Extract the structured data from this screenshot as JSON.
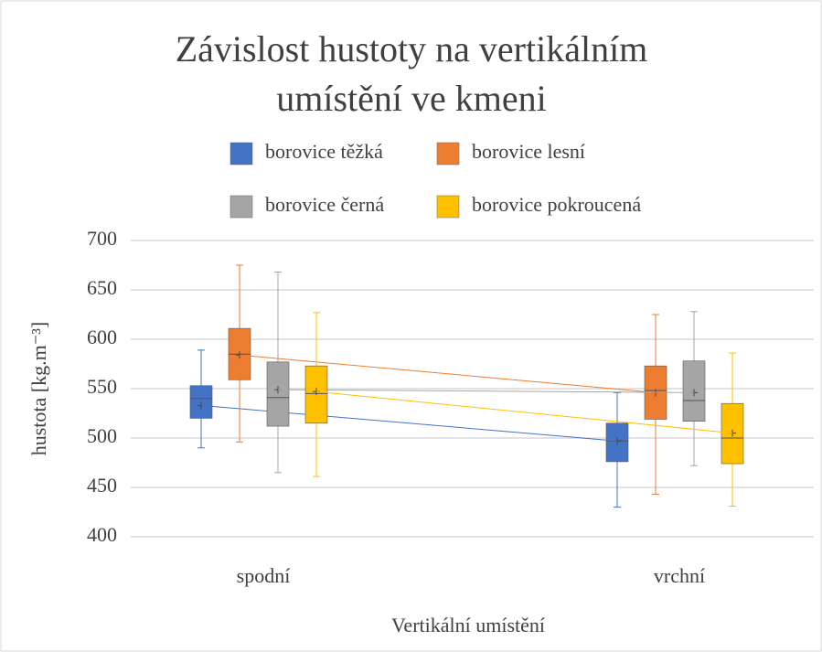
{
  "chart_data": {
    "type": "box",
    "title": [
      "Závislost hustoty na vertikálním",
      "umístění ve kmeni"
    ],
    "xlabel": "Vertikální umístění",
    "ylabel": "hustota [kg.m⁻³]",
    "categories": [
      "spodní",
      "vrchní"
    ],
    "ylim": [
      400,
      700
    ],
    "yticks": [
      400,
      450,
      500,
      550,
      600,
      650,
      700
    ],
    "grid": true,
    "legend": "top",
    "series": [
      {
        "name": "borovice těžká",
        "color": "#4472c4",
        "min": [
          490,
          430
        ],
        "q1": [
          520,
          476
        ],
        "median": [
          540,
          497
        ],
        "q3": [
          553,
          515
        ],
        "max": [
          589,
          546
        ],
        "mean": [
          533,
          497
        ]
      },
      {
        "name": "borovice lesní",
        "color": "#ed7d31",
        "min": [
          496,
          443
        ],
        "q1": [
          559,
          519
        ],
        "median": [
          585,
          548
        ],
        "q3": [
          611,
          573
        ],
        "max": [
          675,
          625
        ],
        "mean": [
          584,
          546
        ]
      },
      {
        "name": "borovice černá",
        "color": "#a5a5a5",
        "min": [
          465,
          472
        ],
        "q1": [
          512,
          517
        ],
        "median": [
          541,
          538
        ],
        "q3": [
          577,
          578
        ],
        "max": [
          668,
          628
        ],
        "mean": [
          549,
          546
        ]
      },
      {
        "name": "borovice pokroucená",
        "color": "#ffc000",
        "min": [
          461,
          431
        ],
        "q1": [
          515,
          474
        ],
        "median": [
          545,
          500
        ],
        "q3": [
          573,
          535
        ],
        "max": [
          627,
          586
        ],
        "mean": [
          547,
          505
        ]
      }
    ]
  }
}
